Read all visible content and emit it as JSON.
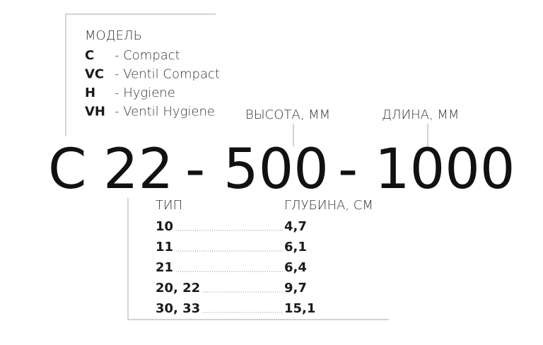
{
  "model": {
    "title": "МОДЕЛЬ",
    "items": [
      {
        "code": "C",
        "name": "- Compact"
      },
      {
        "code": "VC",
        "name": "- Ventil Compact"
      },
      {
        "code": "H",
        "name": "- Hygiene"
      },
      {
        "code": "VH",
        "name": "- Ventil Hygiene"
      }
    ]
  },
  "height_label": "ВЫСОТА, ММ",
  "length_label": "ДЛИНА, ММ",
  "code_parts": [
    "C",
    "22",
    "-",
    "500",
    "-",
    "1000"
  ],
  "type_table": {
    "headers": [
      "ТИП",
      "ГЛУБИНА, СМ"
    ],
    "rows": [
      [
        "10",
        "4,7"
      ],
      [
        "11",
        "6,1"
      ],
      [
        "21",
        "6,4"
      ],
      [
        "20, 22",
        "9,7"
      ],
      [
        "30, 33",
        "15,1"
      ]
    ]
  }
}
